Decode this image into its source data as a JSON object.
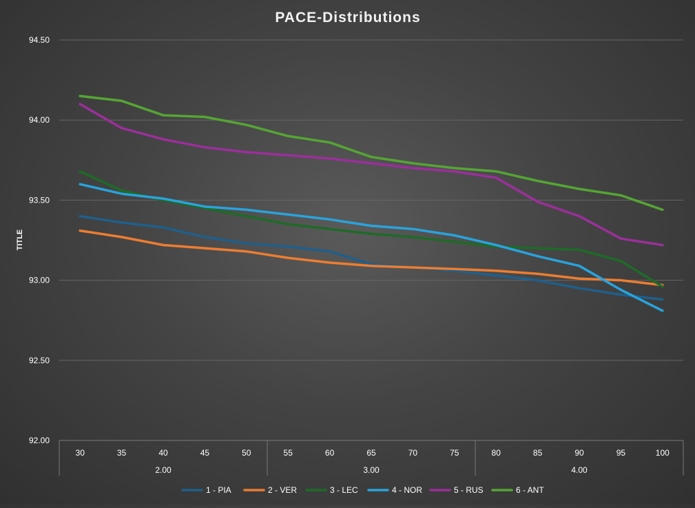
{
  "chart_data": {
    "type": "line",
    "title": "PACE-Distributions",
    "ylabel": "TITLE",
    "xlabel": "",
    "ylim": [
      92.0,
      94.5
    ],
    "y_ticks": [
      "92.00",
      "92.50",
      "93.00",
      "93.50",
      "94.00",
      "94.50"
    ],
    "y_tick_values": [
      92.0,
      92.5,
      93.0,
      93.5,
      94.0,
      94.5
    ],
    "categories": [
      "30",
      "35",
      "40",
      "45",
      "50",
      "55",
      "60",
      "65",
      "70",
      "75",
      "80",
      "85",
      "90",
      "95",
      "100"
    ],
    "groups": [
      {
        "label": "2.00",
        "span": 5
      },
      {
        "label": "3.00",
        "span": 5
      },
      {
        "label": "4.00",
        "span": 5
      }
    ],
    "grid": true,
    "legend_position": "bottom",
    "series": [
      {
        "name": "1 - PIA",
        "color": "#1f5f8b",
        "values": [
          93.4,
          93.36,
          93.33,
          93.27,
          93.23,
          93.21,
          93.18,
          93.1,
          93.08,
          93.06,
          93.03,
          93.0,
          92.95,
          92.91,
          92.88
        ]
      },
      {
        "name": "2 - VER",
        "color": "#ed7d31",
        "values": [
          93.31,
          93.27,
          93.22,
          93.2,
          93.18,
          93.14,
          93.11,
          93.09,
          93.08,
          93.07,
          93.06,
          93.04,
          93.01,
          93.0,
          92.97
        ]
      },
      {
        "name": "3 - LEC",
        "color": "#1e6b27",
        "values": [
          93.68,
          93.56,
          93.5,
          93.45,
          93.4,
          93.35,
          93.32,
          93.29,
          93.27,
          93.24,
          93.21,
          93.2,
          93.19,
          93.12,
          92.96
        ]
      },
      {
        "name": "4 - NOR",
        "color": "#29a3dc",
        "values": [
          93.6,
          93.54,
          93.51,
          93.46,
          93.44,
          93.41,
          93.38,
          93.34,
          93.32,
          93.28,
          93.22,
          93.15,
          93.09,
          92.94,
          92.81
        ]
      },
      {
        "name": "5 - RUS",
        "color": "#9b2f9b",
        "values": [
          94.1,
          93.95,
          93.88,
          93.83,
          93.8,
          93.78,
          93.76,
          93.73,
          93.7,
          93.68,
          93.64,
          93.49,
          93.4,
          93.26,
          93.22
        ]
      },
      {
        "name": "6 - ANT",
        "color": "#55a534",
        "values": [
          94.15,
          94.12,
          94.03,
          94.02,
          93.97,
          93.9,
          93.86,
          93.77,
          93.73,
          93.7,
          93.68,
          93.62,
          93.57,
          93.53,
          93.44
        ]
      }
    ]
  }
}
